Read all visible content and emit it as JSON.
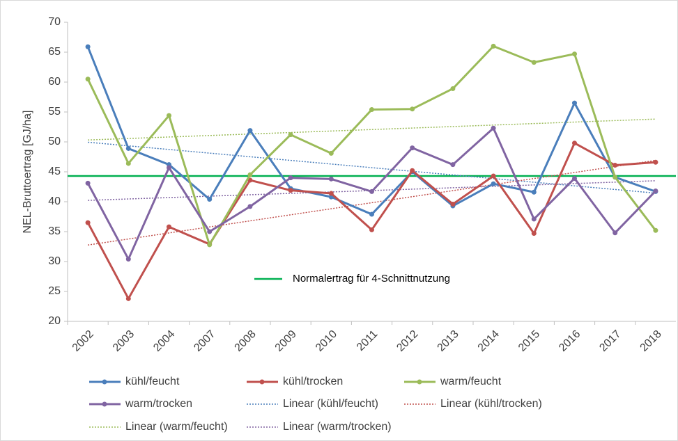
{
  "chart_data": {
    "type": "line",
    "y_label": "NEL-Bruttoertrag [GJ/ha]",
    "categories": [
      "2002",
      "2003",
      "2004",
      "2007",
      "2008",
      "2009",
      "2010",
      "2011",
      "2012",
      "2013",
      "2014",
      "2015",
      "2016",
      "2017",
      "2018"
    ],
    "series": [
      {
        "name": "kühl/feucht",
        "color": "#4a7ebb",
        "values": [
          65.9,
          48.9,
          46.2,
          40.4,
          51.9,
          42.2,
          40.8,
          37.9,
          45.0,
          39.3,
          43.0,
          41.6,
          56.5,
          44.1,
          41.7
        ],
        "trendline": {
          "name": "Linear (kühl/feucht)",
          "color": "#4a7ebb"
        }
      },
      {
        "name": "kühl/trocken",
        "color": "#c0504d",
        "values": [
          36.5,
          23.8,
          35.8,
          32.9,
          43.6,
          41.9,
          41.4,
          35.3,
          45.2,
          39.6,
          44.3,
          34.7,
          49.8,
          46.1,
          46.6
        ],
        "trendline": {
          "name": "Linear (kühl/trocken)",
          "color": "#c0504d"
        }
      },
      {
        "name": "warm/feucht",
        "color": "#9bbb59",
        "values": [
          60.5,
          46.4,
          54.4,
          32.8,
          44.5,
          51.2,
          48.1,
          55.4,
          55.5,
          58.9,
          66.0,
          63.3,
          64.7,
          44.1,
          35.2
        ],
        "trendline": {
          "name": "Linear (warm/feucht)",
          "color": "#9bbb59"
        }
      },
      {
        "name": "warm/trocken",
        "color": "#8064a2",
        "values": [
          43.1,
          30.4,
          45.7,
          35.0,
          39.2,
          44.0,
          43.8,
          41.7,
          49.0,
          46.2,
          52.3,
          37.1,
          43.9,
          34.8,
          41.8
        ],
        "trendline": {
          "name": "Linear (warm/trocken)",
          "color": "#8064a2"
        }
      }
    ],
    "reference_line": {
      "value": 44.3,
      "label": "Normalertrag für 4-Schnittnutzung",
      "color": "#00b050"
    },
    "ylim": [
      20,
      70
    ],
    "yticks": [
      20,
      25,
      30,
      35,
      40,
      45,
      50,
      55,
      60,
      65,
      70
    ],
    "grid": false
  }
}
